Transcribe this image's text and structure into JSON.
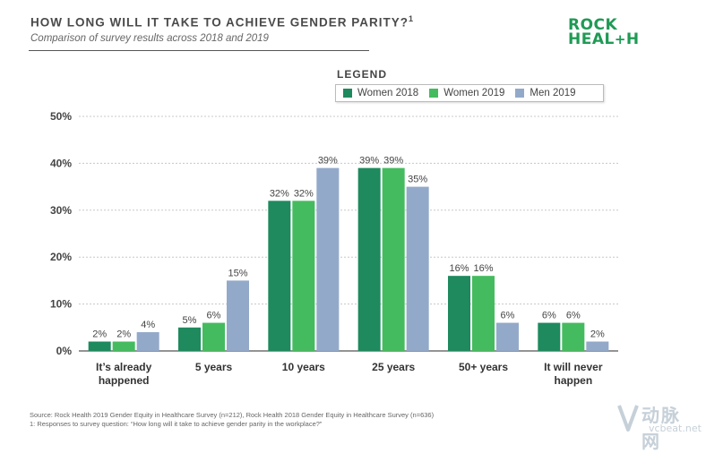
{
  "header": {
    "title": "HOW LONG WILL IT TAKE TO ACHIEVE GENDER PARITY?",
    "title_sup": "1",
    "subtitle": "Comparison of survey results across 2018 and 2019"
  },
  "logo": {
    "line1": "ROCK",
    "line2_a": "HEAL",
    "line2_plus": "+",
    "line2_b": "H"
  },
  "legend": {
    "title": "LEGEND",
    "items": [
      {
        "label": "Women 2018",
        "color": "#1e8a5e"
      },
      {
        "label": "Women 2019",
        "color": "#45bb5f"
      },
      {
        "label": "Men 2019",
        "color": "#93a9c9"
      }
    ]
  },
  "chart_data": {
    "type": "bar",
    "title": "HOW LONG WILL IT TAKE TO ACHIEVE GENDER PARITY?",
    "categories": [
      "It's already happened",
      "5 years",
      "10 years",
      "25 years",
      "50+ years",
      "It will never happen"
    ],
    "category_lines": [
      [
        "It’s already",
        "happened"
      ],
      [
        "5 years"
      ],
      [
        "10 years"
      ],
      [
        "25 years"
      ],
      [
        "50+ years"
      ],
      [
        "It will never",
        "happen"
      ]
    ],
    "series": [
      {
        "name": "Women 2018",
        "values": [
          2,
          5,
          32,
          39,
          16,
          6
        ],
        "labels": [
          "2%",
          "5%",
          "32%",
          "39%",
          "16%",
          "6%"
        ],
        "color": "#1e8a5e"
      },
      {
        "name": "Women 2019",
        "values": [
          2,
          6,
          32,
          39,
          16,
          6
        ],
        "labels": [
          "2%",
          "6%",
          "32%",
          "39%",
          "16%",
          "6%"
        ],
        "color": "#45bb5f"
      },
      {
        "name": "Men 2019",
        "values": [
          4,
          15,
          39,
          35,
          6,
          2
        ],
        "labels": [
          "4%",
          "15%",
          "39%",
          "35%",
          "6%",
          "2%"
        ],
        "color": "#93a9c9"
      }
    ],
    "ylim": [
      0,
      50
    ],
    "yticks": [
      0,
      10,
      20,
      30,
      40,
      50
    ],
    "ytick_labels": [
      "0%",
      "10%",
      "20%",
      "30%",
      "40%",
      "50%"
    ],
    "grid": true,
    "xlabel": "",
    "ylabel": "",
    "legend_position": "top-right"
  },
  "footer": {
    "source": "Source: Rock Health 2019 Gender Equity in Healthcare Survey (n=212), Rock Health 2018 Gender Equity in Healthcare Survey (n=636)",
    "note": "1: Responses to survey question: “How long will it take to achieve gender parity in the workplace?”"
  },
  "watermark": {
    "main": "动脉网",
    "sub": "vcbeat.net"
  }
}
